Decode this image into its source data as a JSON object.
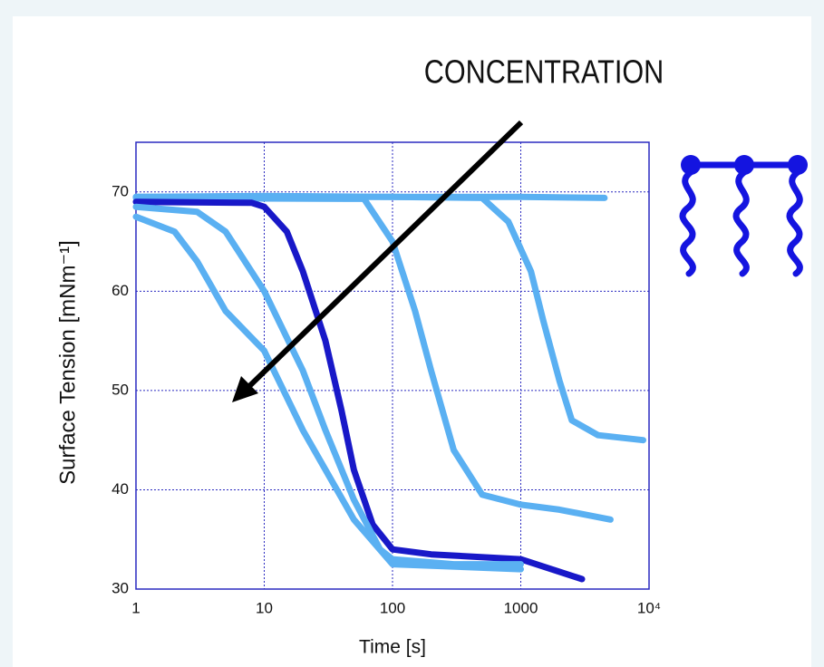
{
  "chart_data": {
    "type": "line",
    "annotation": "CONCENTRATION",
    "xlabel": "Time [s]",
    "ylabel": "Surface Tension [mNm⁻¹]",
    "xscale": "log",
    "grid": true,
    "xlim": [
      1,
      10000
    ],
    "xticks": [
      1,
      10,
      100,
      1000,
      {
        "value": 10000,
        "label": "10⁴"
      }
    ],
    "ylim": [
      30,
      75
    ],
    "yticks": [
      30,
      40,
      50,
      60,
      70
    ],
    "series": [
      {
        "color": "#5ab0f2",
        "x": [
          1,
          10,
          100,
          1000,
          4500
        ],
        "values": [
          69.5,
          69.6,
          69.5,
          69.5,
          69.4
        ]
      },
      {
        "color": "#5ab0f2",
        "x": [
          1,
          100,
          500,
          800,
          1200,
          1500,
          2000,
          2500,
          4000,
          9000
        ],
        "values": [
          69.5,
          69.5,
          69.4,
          67,
          62,
          57,
          51,
          47,
          45.5,
          45
        ]
      },
      {
        "color": "#5ab0f2",
        "x": [
          1,
          60,
          100,
          150,
          200,
          300,
          500,
          1000,
          2000,
          5000
        ],
        "values": [
          69.4,
          69.3,
          65,
          58,
          52,
          44,
          39.5,
          38.5,
          38,
          37
        ]
      },
      {
        "color": "#1818c8",
        "x": [
          1,
          8,
          10,
          15,
          20,
          30,
          40,
          50,
          70,
          100,
          200,
          1000,
          3000
        ],
        "values": [
          69,
          68.9,
          68.5,
          66,
          62,
          55,
          48,
          42,
          36.5,
          34,
          33.5,
          33,
          31
        ]
      },
      {
        "color": "#5ab0f2",
        "x": [
          1,
          3,
          5,
          10,
          20,
          30,
          50,
          80,
          100,
          300,
          1000
        ],
        "values": [
          68.5,
          68,
          66,
          60,
          52,
          46,
          39,
          34,
          33,
          32.5,
          32.5
        ]
      },
      {
        "color": "#5ab0f2",
        "x": [
          1,
          2,
          3,
          5,
          10,
          20,
          50,
          100,
          1000
        ],
        "values": [
          67.5,
          66,
          63,
          58,
          54,
          46,
          37,
          32.5,
          32
        ]
      }
    ]
  }
}
